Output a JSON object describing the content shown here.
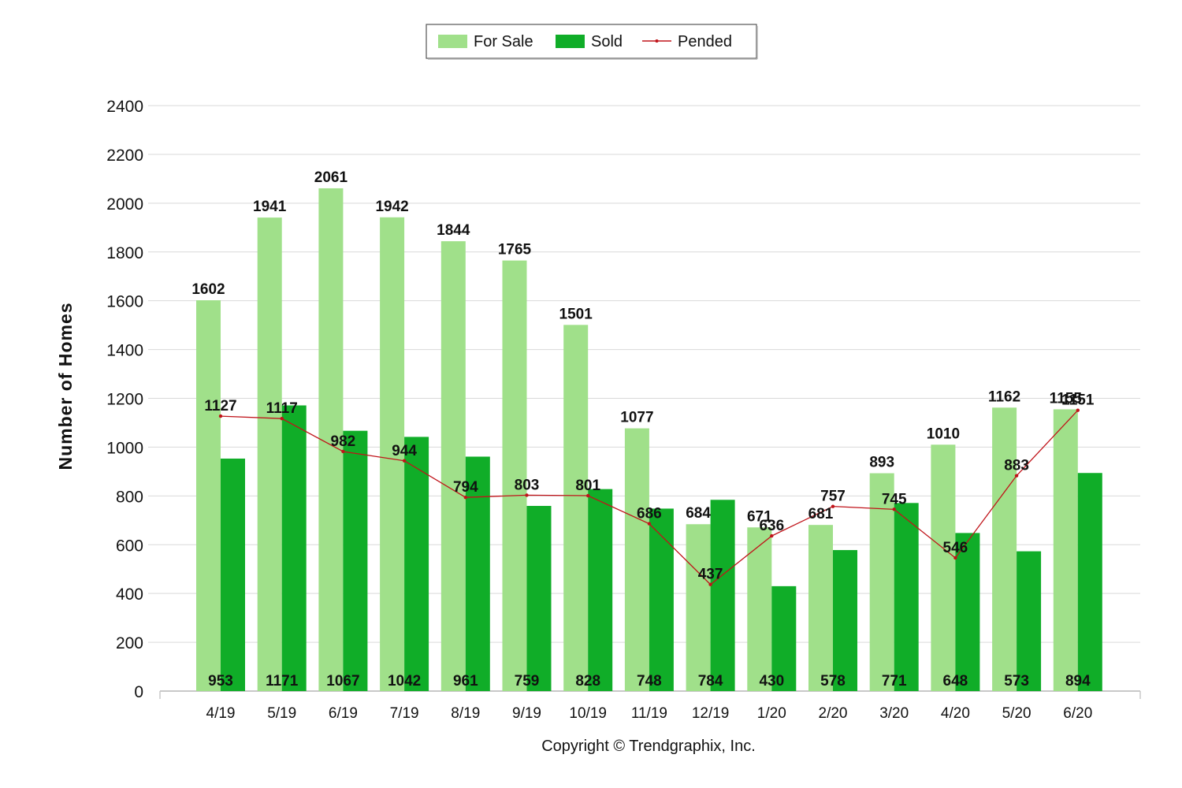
{
  "chart_data": {
    "type": "bar",
    "ylabel": "Number of Homes",
    "xlabel": "",
    "ylim": [
      0,
      2400
    ],
    "yticks": [
      0,
      200,
      400,
      600,
      800,
      1000,
      1200,
      1400,
      1600,
      1800,
      2000,
      2200,
      2400
    ],
    "categories": [
      "4/19",
      "5/19",
      "6/19",
      "7/19",
      "8/19",
      "9/19",
      "10/19",
      "11/19",
      "12/19",
      "1/20",
      "2/20",
      "3/20",
      "4/20",
      "5/20",
      "6/20"
    ],
    "series": [
      {
        "name": "For Sale",
        "type": "bar",
        "color": "#a0e08a",
        "values": [
          1602,
          1941,
          2061,
          1942,
          1844,
          1765,
          1501,
          1077,
          684,
          671,
          681,
          893,
          1010,
          1162,
          1155
        ]
      },
      {
        "name": "Sold",
        "type": "bar",
        "color": "#10ad28",
        "values": [
          953,
          1171,
          1067,
          1042,
          961,
          759,
          828,
          748,
          784,
          430,
          578,
          771,
          648,
          573,
          894
        ]
      },
      {
        "name": "Pended",
        "type": "line",
        "color": "#c0141a",
        "values": [
          1127,
          1117,
          982,
          944,
          794,
          803,
          801,
          686,
          437,
          636,
          757,
          745,
          546,
          883,
          1151
        ]
      }
    ],
    "grid": true,
    "legend": "top-center"
  },
  "footer": {
    "copyright": "Copyright © Trendgraphix, Inc."
  }
}
